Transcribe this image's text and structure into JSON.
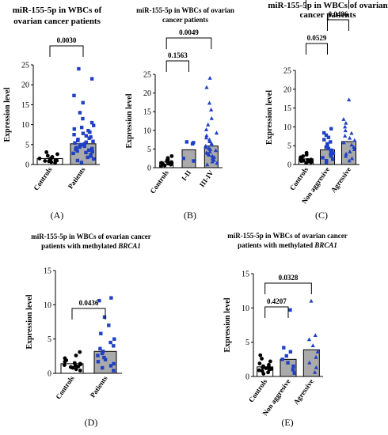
{
  "chart_data": [
    {
      "id": "A",
      "type": "bar",
      "title_lines": [
        [
          "miR-155-5p in WBCs of"
        ],
        [
          "ovarian cancer patients"
        ]
      ],
      "ylabel": "Expression level",
      "ylim": [
        0,
        25
      ],
      "yticks": [
        0,
        5,
        10,
        15,
        20,
        25
      ],
      "categories": [
        "Controls",
        "Patients"
      ],
      "values": [
        1.5,
        5.2
      ],
      "bar_colors": [
        "#ffffff",
        "#aaaaaa"
      ],
      "point_colors": [
        "#000000",
        "#1f3fc4"
      ],
      "point_shapes": [
        "circle",
        "square"
      ],
      "points": [
        [
          0.4,
          0.6,
          0.8,
          0.9,
          1.0,
          1.1,
          1.2,
          1.3,
          1.4,
          1.5,
          1.7,
          1.9,
          2.2,
          2.6,
          3.1
        ],
        [
          0.5,
          1.0,
          1.4,
          1.8,
          2.1,
          2.5,
          2.8,
          3.0,
          3.2,
          3.4,
          3.6,
          3.8,
          4.0,
          4.2,
          4.4,
          4.6,
          4.8,
          5.0,
          5.2,
          5.4,
          5.6,
          5.8,
          6.0,
          6.3,
          6.6,
          6.9,
          7.2,
          7.5,
          7.8,
          8.1,
          8.5,
          8.9,
          9.3,
          9.8,
          10.5,
          11.5,
          13.0,
          15.5,
          17.3,
          21.5,
          24.0
        ]
      ],
      "comparisons": [
        {
          "label": "0.0030",
          "from": 0,
          "to": 1
        }
      ],
      "panel_label": "A"
    },
    {
      "id": "B",
      "type": "bar",
      "title_lines": [
        [
          "miR-155-5p in WBCs of ovarian"
        ],
        [
          "cancer patients"
        ]
      ],
      "ylabel": "Expression level",
      "ylim": [
        0,
        25
      ],
      "yticks": [
        0,
        5,
        10,
        15,
        20,
        25
      ],
      "categories": [
        "Controls",
        "I-II",
        "III-IV"
      ],
      "values": [
        1.5,
        4.8,
        5.8
      ],
      "bar_colors": [
        "#ffffff",
        "#aaaaaa",
        "#aaaaaa"
      ],
      "point_colors": [
        "#000000",
        "#1f3fc4",
        "#1f3fc4"
      ],
      "point_shapes": [
        "circle",
        "square",
        "triangle"
      ],
      "points": [
        [
          0.4,
          0.6,
          0.8,
          0.9,
          1.0,
          1.1,
          1.2,
          1.3,
          1.4,
          1.5,
          1.7,
          1.9,
          2.2,
          2.6,
          3.1
        ],
        [
          1.8,
          2.5,
          6.4,
          6.7,
          6.9
        ],
        [
          0.8,
          1.2,
          1.6,
          2.0,
          2.4,
          2.8,
          3.1,
          3.4,
          3.7,
          4.0,
          4.3,
          4.6,
          4.9,
          5.2,
          5.5,
          5.8,
          6.1,
          6.5,
          7.0,
          7.5,
          8.0,
          8.6,
          9.3,
          10.2,
          11.5,
          13.2,
          15.5,
          17.3,
          21.5,
          24.0
        ]
      ],
      "comparisons": [
        {
          "label": "0.1563",
          "from": 0,
          "to": 1
        },
        {
          "label": "0.0049",
          "from": 0,
          "to": 2
        }
      ],
      "panel_label": "B"
    },
    {
      "id": "C",
      "type": "bar",
      "title_lines": [
        [
          "miR-155-5p in WBCs of ovarian"
        ],
        [
          "cancer patients"
        ]
      ],
      "ylabel": "Expression level",
      "ylim": [
        0,
        25
      ],
      "yticks": [
        0,
        5,
        10,
        15,
        20,
        25
      ],
      "categories": [
        "Controls",
        "Non aggresive",
        "Agressive"
      ],
      "values": [
        1.5,
        3.9,
        6.1
      ],
      "bar_colors": [
        "#ffffff",
        "#aaaaaa",
        "#aaaaaa"
      ],
      "point_colors": [
        "#000000",
        "#1f3fc4",
        "#1f3fc4"
      ],
      "point_shapes": [
        "circle",
        "square",
        "triangle"
      ],
      "points": [
        [
          0.4,
          0.6,
          0.8,
          0.9,
          1.0,
          1.1,
          1.2,
          1.3,
          1.4,
          1.5,
          1.7,
          1.9,
          2.2,
          2.6,
          3.1
        ],
        [
          0.6,
          1.0,
          1.4,
          1.8,
          2.2,
          2.6,
          3.0,
          3.4,
          3.8,
          4.2,
          4.6,
          5.0,
          5.5,
          6.0,
          6.6,
          7.2,
          7.8,
          8.4,
          9.5
        ],
        [
          1.0,
          1.6,
          2.2,
          2.8,
          3.4,
          4.0,
          4.6,
          5.2,
          5.8,
          6.4,
          7.0,
          7.6,
          8.3,
          9.0,
          10.0,
          11.0,
          12.0,
          17.2
        ]
      ],
      "comparisons": [
        {
          "label": "0.0529",
          "from": 0,
          "to": 1
        },
        {
          "label": "0.0486",
          "from": 1,
          "to": 2
        },
        {
          "label": "0.0002",
          "from": 0,
          "to": 2
        }
      ],
      "panel_label": "C"
    },
    {
      "id": "D",
      "type": "bar",
      "title_lines": [
        [
          "miR-155-5p in WBCs of ovarian cancer"
        ],
        [
          "patients with methylated ",
          "BRCA1"
        ]
      ],
      "ylabel": "Expression level",
      "ylim": [
        0,
        15
      ],
      "yticks": [
        0,
        5,
        10,
        15
      ],
      "categories": [
        "Controls",
        "Patients"
      ],
      "values": [
        1.4,
        3.2
      ],
      "bar_colors": [
        "#ffffff",
        "#aaaaaa"
      ],
      "point_colors": [
        "#000000",
        "#1f3fc4"
      ],
      "point_shapes": [
        "circle",
        "square"
      ],
      "points": [
        [
          0.4,
          0.6,
          0.8,
          0.9,
          1.0,
          1.1,
          1.2,
          1.3,
          1.4,
          1.5,
          1.7,
          1.9,
          2.2,
          2.6,
          3.1
        ],
        [
          0.4,
          0.8,
          1.1,
          1.4,
          1.7,
          2.0,
          2.3,
          2.6,
          2.9,
          3.2,
          3.6,
          4.0,
          4.5,
          5.0,
          5.8,
          7.0,
          8.2,
          10.6,
          11.0
        ]
      ],
      "comparisons": [
        {
          "label": "0.0436",
          "from": 0,
          "to": 1
        }
      ],
      "panel_label": "D"
    },
    {
      "id": "E",
      "type": "bar",
      "title_lines": [
        [
          "miR-155-5p in WBCs of ovarian cancer"
        ],
        [
          "patients with methylated ",
          "BRCA1"
        ]
      ],
      "ylabel": "Expression level",
      "ylim": [
        0,
        15
      ],
      "yticks": [
        0,
        5,
        10,
        15
      ],
      "categories": [
        "Controls",
        "Non aggresive",
        "Agressive"
      ],
      "values": [
        1.4,
        2.5,
        3.9
      ],
      "bar_colors": [
        "#ffffff",
        "#aaaaaa",
        "#aaaaaa"
      ],
      "point_colors": [
        "#000000",
        "#1f3fc4",
        "#1f3fc4"
      ],
      "point_shapes": [
        "circle",
        "square",
        "triangle"
      ],
      "points": [
        [
          0.4,
          0.6,
          0.8,
          0.9,
          1.0,
          1.1,
          1.2,
          1.3,
          1.4,
          1.5,
          1.7,
          1.9,
          2.2,
          2.6,
          3.1
        ],
        [
          0.5,
          1.0,
          1.5,
          2.0,
          2.5,
          3.0,
          3.6,
          4.2,
          9.7
        ],
        [
          0.6,
          1.3,
          2.0,
          2.8,
          3.6,
          4.5,
          5.4,
          6.0,
          11.0
        ]
      ],
      "comparisons": [
        {
          "label": "0.4207",
          "from": 0,
          "to": 1
        },
        {
          "label": "0.0328",
          "from": 0,
          "to": 2
        }
      ],
      "panel_label": "E"
    }
  ]
}
